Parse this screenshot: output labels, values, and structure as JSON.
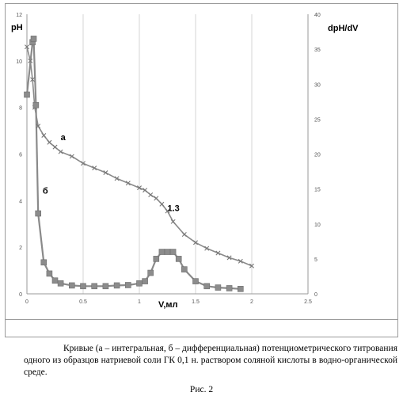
{
  "chart_data": {
    "type": "line",
    "y_left_label": "pH",
    "y_right_label": "dpH/dV",
    "x_label": "V,мл",
    "xlim": [
      0,
      2.5
    ],
    "ylim_left": [
      0,
      12
    ],
    "ylim_right": [
      0,
      40
    ],
    "x_ticks": [
      "0",
      "0.5",
      "1",
      "1.5",
      "2",
      "2.5"
    ],
    "y_left_ticks": [
      "0",
      "2",
      "4",
      "6",
      "8",
      "10",
      "12"
    ],
    "y_right_ticks": [
      "0",
      "5",
      "10",
      "15",
      "20",
      "25",
      "30",
      "35",
      "40"
    ],
    "grid": "vertical",
    "series": [
      {
        "name": "а",
        "axis": "left",
        "color": "#8a8a8a",
        "marker": "x",
        "x": [
          0,
          0.03,
          0.05,
          0.07,
          0.1,
          0.15,
          0.2,
          0.25,
          0.3,
          0.4,
          0.5,
          0.6,
          0.7,
          0.8,
          0.9,
          1.0,
          1.05,
          1.1,
          1.15,
          1.2,
          1.25,
          1.3,
          1.4,
          1.5,
          1.6,
          1.7,
          1.8,
          1.9,
          2.0
        ],
        "y": [
          10.6,
          10.0,
          9.2,
          8.0,
          7.2,
          6.8,
          6.5,
          6.3,
          6.1,
          5.9,
          5.6,
          5.4,
          5.2,
          4.95,
          4.75,
          4.55,
          4.45,
          4.25,
          4.1,
          3.85,
          3.55,
          3.1,
          2.55,
          2.2,
          1.95,
          1.75,
          1.55,
          1.4,
          1.2
        ]
      },
      {
        "name": "б",
        "axis": "right",
        "color": "#8a8a8a",
        "marker": "square",
        "x": [
          0,
          0.05,
          0.06,
          0.08,
          0.1,
          0.15,
          0.2,
          0.25,
          0.3,
          0.4,
          0.5,
          0.6,
          0.7,
          0.8,
          0.9,
          1.0,
          1.05,
          1.1,
          1.15,
          1.2,
          1.25,
          1.3,
          1.35,
          1.4,
          1.5,
          1.6,
          1.7,
          1.8,
          1.9
        ],
        "y": [
          28.5,
          36.0,
          36.5,
          27.0,
          11.5,
          4.5,
          2.9,
          1.9,
          1.5,
          1.2,
          1.1,
          1.1,
          1.1,
          1.2,
          1.25,
          1.5,
          1.8,
          3.0,
          5.0,
          6.0,
          6.0,
          6.0,
          5.0,
          3.5,
          1.8,
          1.1,
          0.9,
          0.8,
          0.7
        ]
      }
    ],
    "annotations": [
      {
        "text": "а",
        "x": 0.3,
        "y_left": 6.6
      },
      {
        "text": "б",
        "x": 0.14,
        "y_left": 4.3
      },
      {
        "text": "1.3",
        "x": 1.25,
        "y_left": 3.55
      }
    ]
  },
  "caption": "Кривые (а – интегральная, б – дифференциальная) потенциометрического титрования одного из образцов натриевой соли ГК 0,1 н. раствором соляной кислоты в водно-органической среде.",
  "figure_number": "Рис. 2"
}
